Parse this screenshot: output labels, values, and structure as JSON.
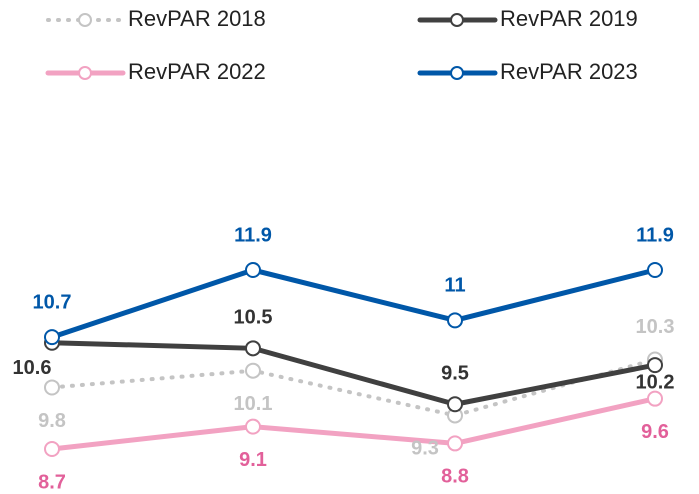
{
  "chart_data": {
    "type": "line",
    "categories": [
      null,
      null,
      null,
      null
    ],
    "series": [
      {
        "name": "RevPAR 2018",
        "color": "#c4c4c4",
        "label_color": "#c4c4c4",
        "line_style": "dotted",
        "values": [
          9.8,
          10.1,
          9.3,
          10.3
        ]
      },
      {
        "name": "RevPAR 2019",
        "color": "#404040",
        "label_color": "#333333",
        "line_style": "solid",
        "values": [
          10.6,
          10.5,
          9.5,
          10.2
        ]
      },
      {
        "name": "RevPAR 2022",
        "color": "#f2a2c2",
        "label_color": "#e2609a",
        "line_style": "solid",
        "values": [
          8.7,
          9.1,
          8.8,
          9.6
        ]
      },
      {
        "name": "RevPAR 2023",
        "color": "#0057a8",
        "label_color": "#0057a8",
        "line_style": "solid",
        "values": [
          10.7,
          11.9,
          11.0,
          11.9
        ]
      }
    ],
    "grid": false
  }
}
